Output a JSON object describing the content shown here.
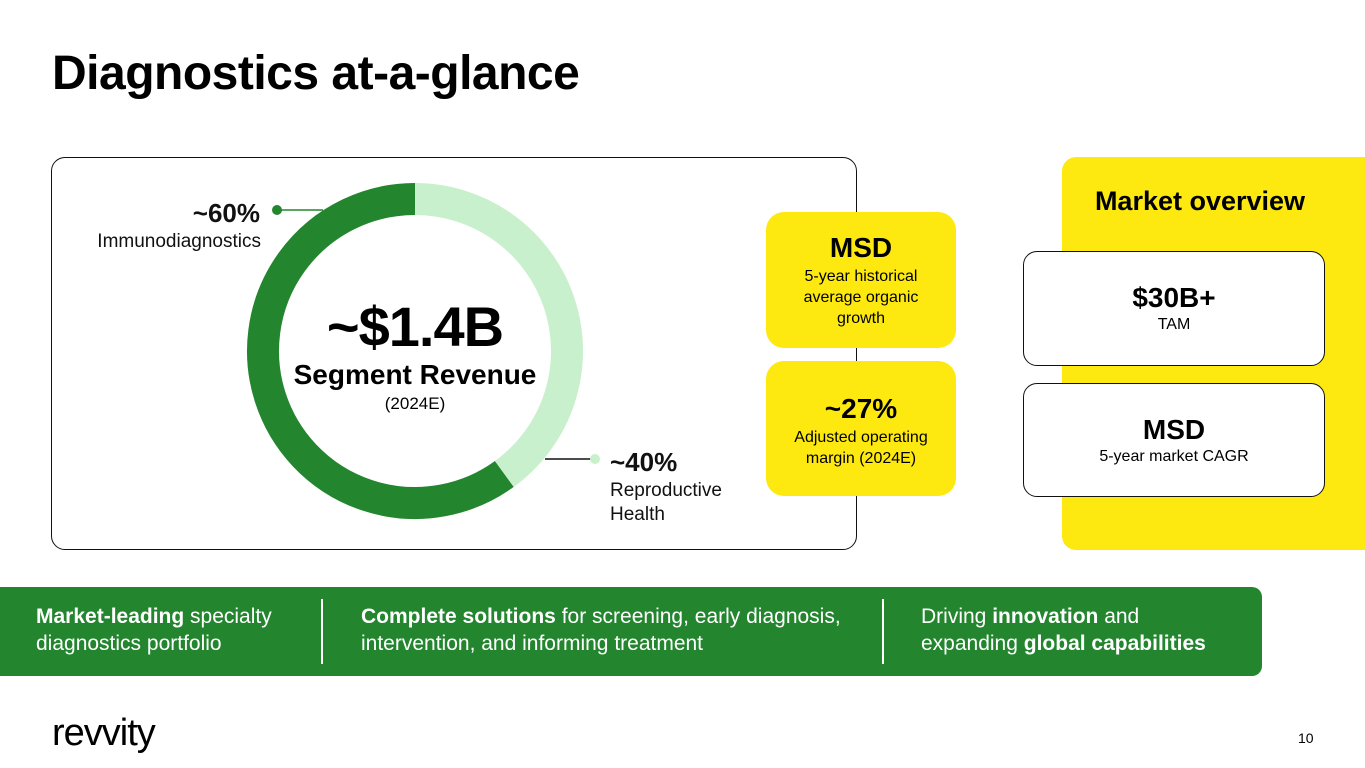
{
  "title": "Diagnostics at-a-glance",
  "chart_data": {
    "type": "pie",
    "donut": true,
    "categories": [
      "Immunodiagnostics",
      "Reproductive Health"
    ],
    "values": [
      60,
      40
    ],
    "value_labels": [
      "~60%",
      "~40%"
    ],
    "labels": [
      "Immunodiagnostics",
      "Reproductive Health"
    ],
    "colors": [
      "#23862e",
      "#c8f0cc"
    ],
    "center": {
      "value": "~$1.4B",
      "label": "Segment Revenue",
      "sublabel": "(2024E)"
    }
  },
  "metrics": [
    {
      "value": "MSD",
      "caption": "5-year historical average organic growth"
    },
    {
      "value": "~27%",
      "caption": "Adjusted operating margin (2024E)"
    }
  ],
  "market": {
    "title": "Market overview",
    "cards": [
      {
        "value": "$30B+",
        "caption": "TAM"
      },
      {
        "value": "MSD",
        "caption": "5-year market CAGR"
      }
    ]
  },
  "band": {
    "col1": {
      "b1": "Market-leading",
      "t1": " specialty diagnostics portfolio"
    },
    "col2": {
      "b1": "Complete solutions",
      "t1": " for screening, early diagnosis, intervention, and informing treatment"
    },
    "col3": {
      "t1": "Driving ",
      "b1": "innovation",
      "t2": " and expanding ",
      "b2": "global capabilities"
    }
  },
  "footer": {
    "logo": "revvity",
    "page_number": "10"
  }
}
